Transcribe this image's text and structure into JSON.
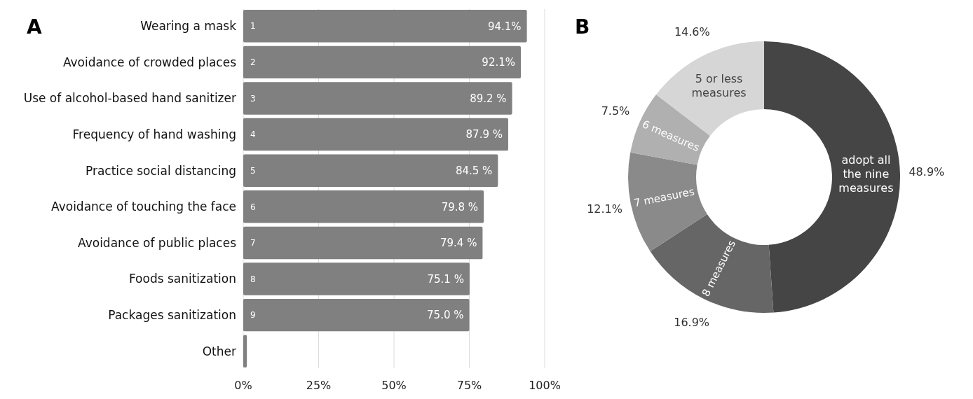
{
  "chart_data": [
    {
      "type": "bar",
      "title": "A",
      "orientation": "horizontal",
      "categories": [
        "Wearing a mask",
        "Avoidance of crowded places",
        "Use of alcohol-based hand sanitizer",
        "Frequency of hand washing",
        "Practice social distancing",
        "Avoidance of touching the face",
        "Avoidance of public places",
        "Foods sanitization",
        "Packages sanitization",
        "Other"
      ],
      "values": [
        94.1,
        92.1,
        89.2,
        87.9,
        84.5,
        79.8,
        79.4,
        75.1,
        75.0,
        1.2
      ],
      "value_labels": [
        "94.1%",
        "92.1%",
        "89.2 %",
        "87.9 %",
        "84.5 %",
        "79.8 %",
        "79.4 %",
        "75.1 %",
        "75.0 %",
        null
      ],
      "color": "#808080",
      "xlim": [
        0,
        100
      ],
      "xticks": [
        {
          "value": 0,
          "label": "0%"
        },
        {
          "value": 25,
          "label": "25%"
        },
        {
          "value": 50,
          "label": "50%"
        },
        {
          "value": 75,
          "label": "75%"
        },
        {
          "value": 100,
          "label": "100%"
        }
      ],
      "grid": "x",
      "annotations": [
        {
          "text": "1",
          "y": "Wearing a mask"
        },
        {
          "text": "2",
          "y": "Avoidance of crowded places"
        },
        {
          "text": "3",
          "y": "Use of alcohol-based hand sanitizer"
        },
        {
          "text": "4",
          "y": "Frequency of hand washing"
        },
        {
          "text": "5",
          "y": "Practice social distancing"
        },
        {
          "text": "6",
          "y": "Avoidance of touching the face"
        },
        {
          "text": "7",
          "y": "Avoidance of public places"
        },
        {
          "text": "8",
          "y": "Foods sanitization"
        },
        {
          "text": "9",
          "y": "Packages sanitization"
        }
      ]
    },
    {
      "type": "donut",
      "title": "B",
      "categories": [
        "adopt all the nine measures",
        "8 measures",
        "7 measures",
        "6 measures",
        "5 or less measures"
      ],
      "values": [
        48.9,
        16.9,
        12.1,
        7.5,
        14.6
      ],
      "value_labels": [
        "48.9%",
        "16.9%",
        "12.1%",
        "7.5%",
        "14.6%"
      ],
      "colors": [
        "#454545",
        "#666666",
        "#8a8a8a",
        "#b0b0b0",
        "#d6d6d6"
      ]
    }
  ]
}
